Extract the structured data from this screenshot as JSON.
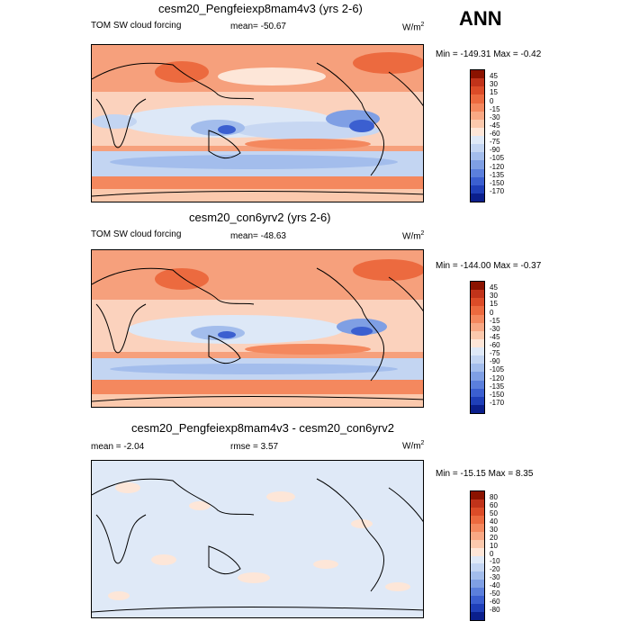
{
  "season": "ANN",
  "panels": [
    {
      "title": "cesm20_Pengfeiexp8mam4v3 (yrs 2-6)",
      "variable": "TOM SW cloud forcing",
      "mean": "mean= -50.67",
      "units": "W/m",
      "units_sup": "2",
      "minmax": "Min = -149.31 Max =  -0.42",
      "levels": [
        "45",
        "30",
        "15",
        "0",
        "-15",
        "-30",
        "-45",
        "-60",
        "-75",
        "-90",
        "-105",
        "-120",
        "-135",
        "-150",
        "-170"
      ],
      "colors": [
        "#8b1300",
        "#c1331a",
        "#dc4c28",
        "#ec6a3f",
        "#f4885e",
        "#f8a884",
        "#fbc9ad",
        "#fde6d8",
        "#dfe9f7",
        "#c3d5f2",
        "#a3bdec",
        "#7f9fe4",
        "#5b7fdc",
        "#3b5fd0",
        "#1f3fb8",
        "#0b1f8c"
      ]
    },
    {
      "title": "cesm20_con6yrv2 (yrs 2-6)",
      "variable": "TOM SW cloud forcing",
      "mean": "mean= -48.63",
      "units": "W/m",
      "units_sup": "2",
      "minmax": "Min = -144.00 Max =  -0.37",
      "levels": [
        "45",
        "30",
        "15",
        "0",
        "-15",
        "-30",
        "-45",
        "-60",
        "-75",
        "-90",
        "-105",
        "-120",
        "-135",
        "-150",
        "-170"
      ],
      "colors": [
        "#8b1300",
        "#c1331a",
        "#dc4c28",
        "#ec6a3f",
        "#f4885e",
        "#f8a884",
        "#fbc9ad",
        "#fde6d8",
        "#dfe9f7",
        "#c3d5f2",
        "#a3bdec",
        "#7f9fe4",
        "#5b7fdc",
        "#3b5fd0",
        "#1f3fb8",
        "#0b1f8c"
      ]
    },
    {
      "title": "cesm20_Pengfeiexp8mam4v3 - cesm20_con6yrv2",
      "mean": "mean =  -2.04",
      "rmse": "rmse =   3.57",
      "units": "W/m",
      "units_sup": "2",
      "minmax": "Min = -15.15 Max =   8.35",
      "levels": [
        "80",
        "60",
        "50",
        "40",
        "30",
        "20",
        "10",
        "0",
        "-10",
        "-20",
        "-30",
        "-40",
        "-50",
        "-60",
        "-80"
      ],
      "colors": [
        "#8b1300",
        "#c1331a",
        "#dc4c28",
        "#ec6a3f",
        "#f4885e",
        "#f8a884",
        "#fbc9ad",
        "#fde6d8",
        "#dfe9f7",
        "#c3d5f2",
        "#a3bdec",
        "#7f9fe4",
        "#5b7fdc",
        "#3b5fd0",
        "#1f3fb8",
        "#0b1f8c"
      ]
    }
  ]
}
